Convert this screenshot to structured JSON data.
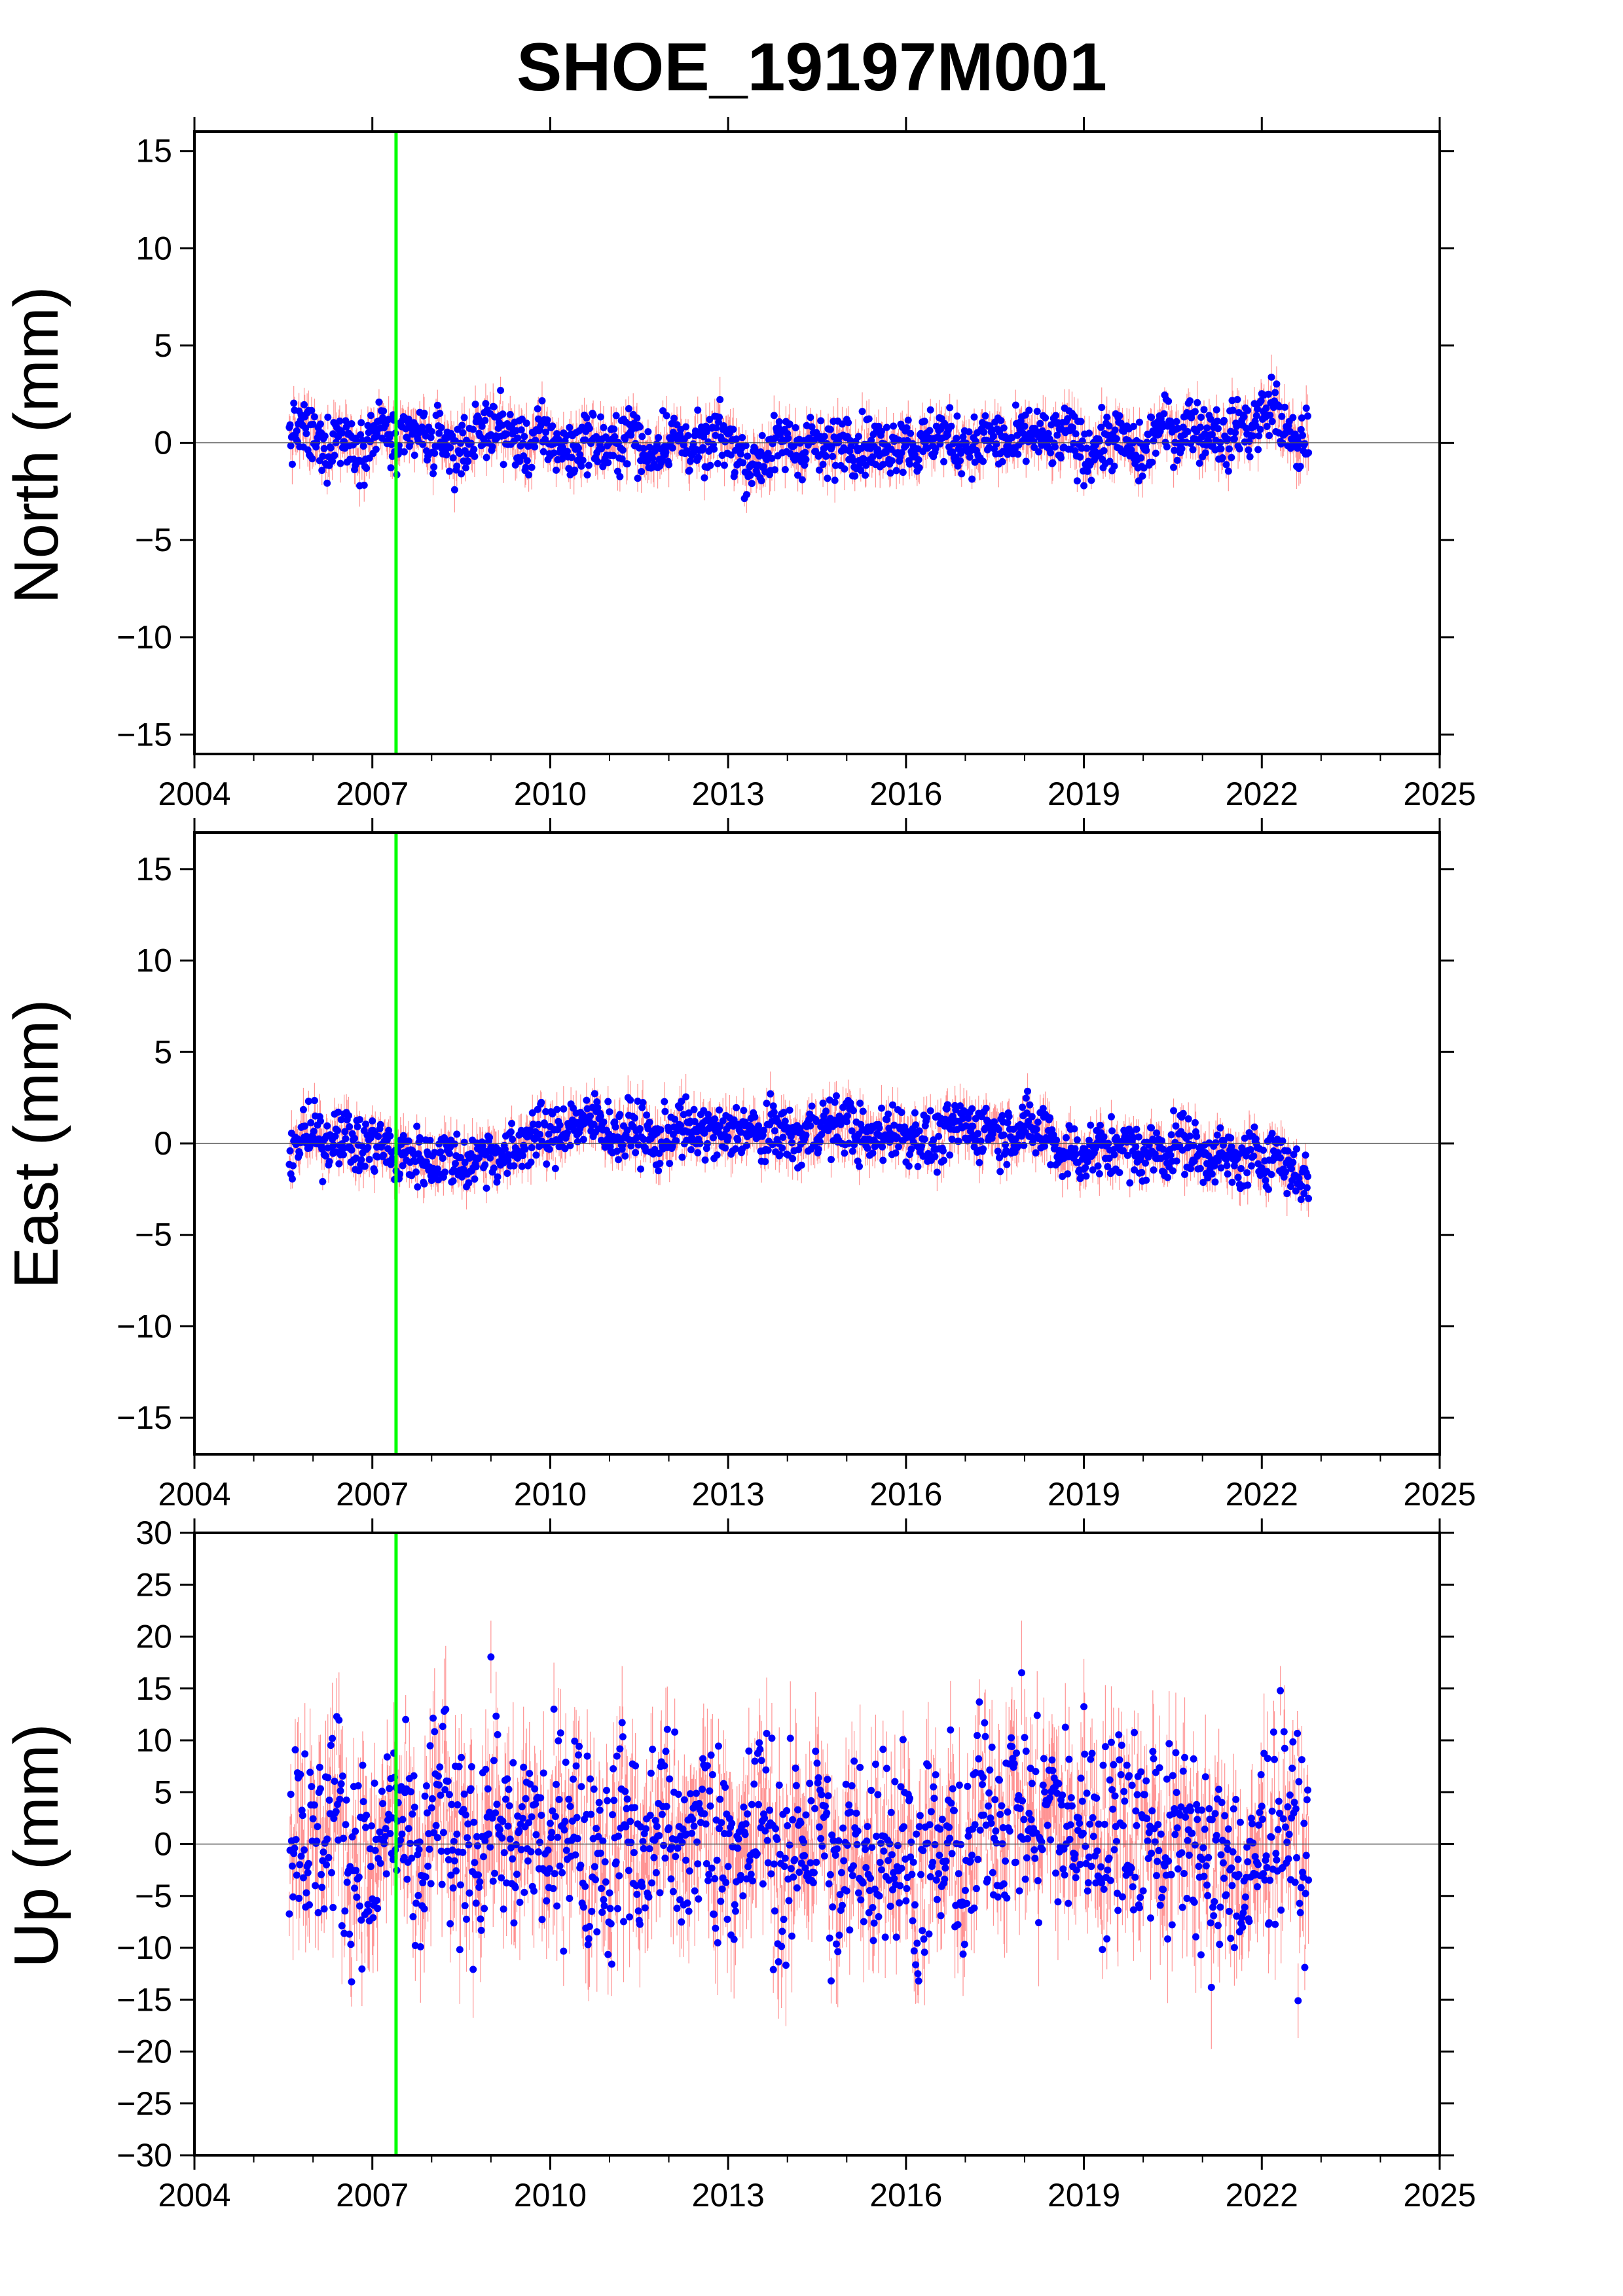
{
  "title": "SHOE_19197M001",
  "colors": {
    "point": "#0000ff",
    "error_bar": "#ff6666",
    "event_line": "#00ff00",
    "zero_line": "#555555",
    "frame": "#000000"
  },
  "chart_data": [
    {
      "type": "scatter",
      "panel": "north",
      "ylabel": "North (mm)",
      "xlim": [
        2004,
        2025
      ],
      "ylim": [
        -16,
        16
      ],
      "xticks": [
        2004,
        2007,
        2010,
        2013,
        2016,
        2019,
        2022,
        2025
      ],
      "yticks": [
        -15,
        -10,
        -5,
        0,
        5,
        10,
        15
      ],
      "data_range_x": [
        2005.6,
        2022.9
      ],
      "zero_line": 0,
      "event_line_x": 2007.4,
      "series": [
        {
          "x": [
            2005.6,
            2005.8,
            2006.0,
            2006.2,
            2006.4,
            2006.6,
            2006.8,
            2007.0,
            2007.2,
            2007.4,
            2007.6,
            2007.8,
            2008.0,
            2008.2,
            2008.4,
            2008.6,
            2008.8,
            2009.0,
            2009.2,
            2009.4,
            2009.6,
            2009.8,
            2010.0,
            2010.2,
            2010.4,
            2010.6,
            2010.8,
            2011.0,
            2011.2,
            2011.4,
            2011.6,
            2011.8,
            2012.0,
            2012.2,
            2012.4,
            2012.6,
            2012.8,
            2013.0,
            2013.2,
            2013.4,
            2013.6,
            2013.8,
            2014.0,
            2014.2,
            2014.4,
            2014.6,
            2014.8,
            2015.0,
            2015.2,
            2015.4,
            2015.6,
            2015.8,
            2016.0,
            2016.2,
            2016.4,
            2016.6,
            2016.8,
            2017.0,
            2017.2,
            2017.4,
            2017.6,
            2017.8,
            2018.0,
            2018.2,
            2018.4,
            2018.6,
            2018.8,
            2019.0,
            2019.2,
            2019.4,
            2019.6,
            2019.8,
            2020.0,
            2020.2,
            2020.4,
            2020.6,
            2020.8,
            2021.0,
            2021.2,
            2021.4,
            2021.6,
            2021.8,
            2022.0,
            2022.2,
            2022.4,
            2022.6,
            2022.8
          ],
          "y": [
            0.3,
            0.8,
            0.2,
            -0.4,
            0.5,
            0.1,
            -0.3,
            0.4,
            0.9,
            -0.5,
            0.2,
            0.6,
            -0.2,
            0.3,
            -0.6,
            0.1,
            0.4,
            1.0,
            0.7,
            0.2,
            -0.3,
            0.5,
            0.1,
            -0.2,
            -0.5,
            0.3,
            0.0,
            -0.4,
            0.2,
            0.6,
            -0.8,
            -0.3,
            0.4,
            0.1,
            -0.2,
            -0.5,
            0.3,
            0.2,
            -0.6,
            -1.2,
            -0.7,
            -0.2,
            0.1,
            -0.4,
            0.3,
            -0.6,
            -0.2,
            0.4,
            -0.3,
            0.1,
            -0.5,
            0.0,
            0.3,
            -0.4,
            0.2,
            0.6,
            -0.2,
            0.1,
            -0.3,
            0.4,
            0.0,
            -0.2,
            0.3,
            0.5,
            -0.1,
            0.2,
            0.4,
            -0.6,
            -0.2,
            0.1,
            0.3,
            -0.4,
            -0.8,
            0.6,
            0.9,
            0.3,
            1.2,
            0.4,
            0.8,
            -0.2,
            1.1,
            0.6,
            1.4,
            2.0,
            0.5,
            -0.4,
            0.7
          ]
        }
      ]
    },
    {
      "type": "scatter",
      "panel": "east",
      "ylabel": "East (mm)",
      "xlim": [
        2004,
        2025
      ],
      "ylim": [
        -17,
        17
      ],
      "xticks": [
        2004,
        2007,
        2010,
        2013,
        2016,
        2019,
        2022,
        2025
      ],
      "yticks": [
        -15,
        -10,
        -5,
        0,
        5,
        10,
        15
      ],
      "data_range_x": [
        2005.6,
        2022.9
      ],
      "zero_line": 0,
      "event_line_x": 2007.4,
      "series": [
        {
          "x": [
            2005.6,
            2005.8,
            2006.0,
            2006.2,
            2006.4,
            2006.6,
            2006.8,
            2007.0,
            2007.2,
            2007.4,
            2007.6,
            2007.8,
            2008.0,
            2008.2,
            2008.4,
            2008.6,
            2008.8,
            2009.0,
            2009.2,
            2009.4,
            2009.6,
            2009.8,
            2010.0,
            2010.2,
            2010.4,
            2010.6,
            2010.8,
            2011.0,
            2011.2,
            2011.4,
            2011.6,
            2011.8,
            2012.0,
            2012.2,
            2012.4,
            2012.6,
            2012.8,
            2013.0,
            2013.2,
            2013.4,
            2013.6,
            2013.8,
            2014.0,
            2014.2,
            2014.4,
            2014.6,
            2014.8,
            2015.0,
            2015.2,
            2015.4,
            2015.6,
            2015.8,
            2016.0,
            2016.2,
            2016.4,
            2016.6,
            2016.8,
            2017.0,
            2017.2,
            2017.4,
            2017.6,
            2017.8,
            2018.0,
            2018.2,
            2018.4,
            2018.6,
            2018.8,
            2019.0,
            2019.2,
            2019.4,
            2019.6,
            2019.8,
            2020.0,
            2020.2,
            2020.4,
            2020.6,
            2020.8,
            2021.0,
            2021.2,
            2021.4,
            2021.6,
            2021.8,
            2022.0,
            2022.2,
            2022.4,
            2022.6,
            2022.8
          ],
          "y": [
            -0.3,
            0.2,
            0.5,
            -0.1,
            0.8,
            0.3,
            -0.4,
            0.1,
            -0.2,
            -0.9,
            -0.5,
            -0.8,
            -1.0,
            -0.6,
            -0.9,
            -1.1,
            -0.7,
            -0.4,
            -0.8,
            -0.5,
            0.3,
            0.6,
            0.2,
            0.8,
            1.2,
            0.9,
            1.5,
            0.7,
            0.3,
            0.9,
            0.5,
            -0.2,
            0.6,
            1.0,
            0.4,
            0.8,
            0.5,
            0.3,
            1.0,
            0.6,
            0.2,
            0.9,
            0.4,
            0.1,
            0.7,
            1.1,
            0.8,
            1.3,
            0.5,
            0.0,
            0.6,
            0.9,
            0.3,
            0.6,
            -0.1,
            0.2,
            0.8,
            1.1,
            0.6,
            1.0,
            0.4,
            0.7,
            1.0,
            0.5,
            0.8,
            -0.6,
            -0.3,
            -0.8,
            -0.2,
            -0.5,
            0.1,
            -0.4,
            -0.7,
            -0.2,
            -0.6,
            0.3,
            -0.1,
            -0.9,
            -0.4,
            -0.8,
            -1.2,
            -0.6,
            -0.9,
            -0.3,
            -1.1,
            -1.6,
            -2.2
          ]
        }
      ]
    },
    {
      "type": "scatter",
      "panel": "up",
      "ylabel": "Up (mm)",
      "xlim": [
        2004,
        2025
      ],
      "ylim": [
        -30,
        30
      ],
      "xticks": [
        2004,
        2007,
        2010,
        2013,
        2016,
        2019,
        2022,
        2025
      ],
      "yticks": [
        -30,
        -25,
        -20,
        -15,
        -10,
        -5,
        0,
        5,
        10,
        15,
        20,
        25,
        30
      ],
      "data_range_x": [
        2005.6,
        2022.9
      ],
      "zero_line": 0,
      "event_line_x": 2007.4,
      "series": [
        {
          "x": [
            2005.6,
            2005.8,
            2006.0,
            2006.2,
            2006.4,
            2006.6,
            2006.8,
            2007.0,
            2007.2,
            2007.4,
            2007.6,
            2007.8,
            2008.0,
            2008.2,
            2008.4,
            2008.6,
            2008.8,
            2009.0,
            2009.2,
            2009.4,
            2009.6,
            2009.8,
            2010.0,
            2010.2,
            2010.4,
            2010.6,
            2010.8,
            2011.0,
            2011.2,
            2011.4,
            2011.6,
            2011.8,
            2012.0,
            2012.2,
            2012.4,
            2012.6,
            2012.8,
            2013.0,
            2013.2,
            2013.4,
            2013.6,
            2013.8,
            2014.0,
            2014.2,
            2014.4,
            2014.6,
            2014.8,
            2015.0,
            2015.2,
            2015.4,
            2015.6,
            2015.8,
            2016.0,
            2016.2,
            2016.4,
            2016.6,
            2016.8,
            2017.0,
            2017.2,
            2017.4,
            2017.6,
            2017.8,
            2018.0,
            2018.2,
            2018.4,
            2018.6,
            2018.8,
            2019.0,
            2019.2,
            2019.4,
            2019.6,
            2019.8,
            2020.0,
            2020.2,
            2020.4,
            2020.6,
            2020.8,
            2021.0,
            2021.2,
            2021.4,
            2021.6,
            2021.8,
            2022.0,
            2022.2,
            2022.4,
            2022.6,
            2022.8
          ],
          "y": [
            1.0,
            3.5,
            -1.5,
            2.0,
            4.0,
            -2.5,
            0.5,
            -5.0,
            1.5,
            3.0,
            -0.5,
            -4.0,
            2.5,
            5.0,
            -3.0,
            1.0,
            -1.0,
            4.5,
            2.0,
            -3.5,
            3.0,
            0.5,
            -2.0,
            2.5,
            4.0,
            -1.5,
            1.0,
            -3.0,
            3.5,
            0.0,
            -2.5,
            2.0,
            4.5,
            -4.0,
            1.5,
            3.0,
            -0.5,
            2.0,
            -3.5,
            1.0,
            4.0,
            -1.0,
            -4.5,
            2.0,
            0.5,
            3.5,
            -6.0,
            -2.0,
            1.5,
            -3.0,
            2.5,
            -1.5,
            1.0,
            -4.5,
            0.0,
            -2.5,
            1.5,
            -6.0,
            3.0,
            4.5,
            2.0,
            5.0,
            3.5,
            1.0,
            4.0,
            2.5,
            0.0,
            3.5,
            1.5,
            -0.5,
            4.0,
            2.5,
            0.5,
            3.0,
            -1.5,
            1.0,
            2.5,
            -2.5,
            -4.0,
            0.5,
            -3.5,
            -5.0,
            1.0,
            2.0,
            3.5,
            -0.5,
            -2.5
          ]
        }
      ]
    }
  ]
}
